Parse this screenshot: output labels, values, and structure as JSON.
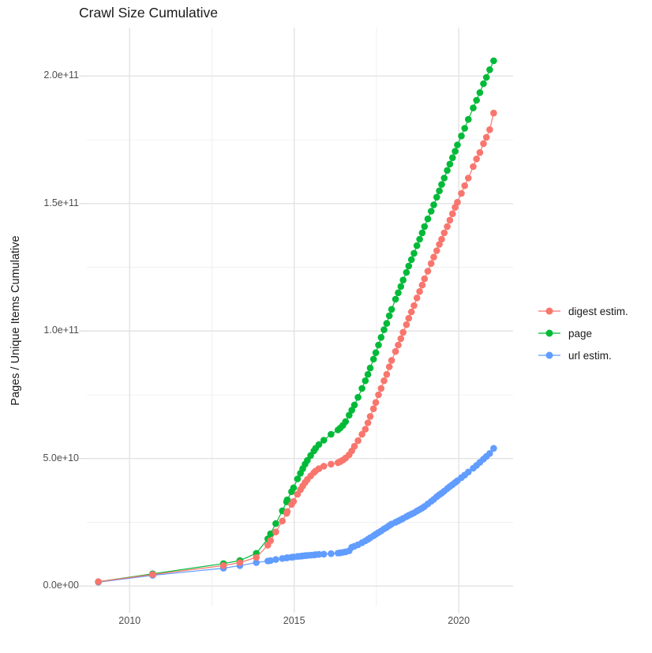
{
  "title": "Crawl Size Cumulative",
  "chart_data": {
    "type": "line",
    "title": "Crawl Size Cumulative",
    "xlabel": "",
    "ylabel": "Pages / Unique Items Cumulative",
    "legend_position": "right",
    "grid": true,
    "value_unit": "1e9 (billions of pages / unique items)",
    "xlim": [
      2008.7,
      2021.65
    ],
    "ylim_billions": [
      -8,
      219
    ],
    "x_ticks": [
      2010,
      2015,
      2020
    ],
    "x_tick_labels": [
      "2010",
      "2015",
      "2020"
    ],
    "x_minor_ticks": [
      2012.5,
      2017.5
    ],
    "y_ticks_billions": [
      0,
      50,
      100,
      150,
      200
    ],
    "y_tick_labels": [
      "0.0e+00",
      "5.0e+10",
      "1.0e+11",
      "1.5e+11",
      "2.0e+11"
    ],
    "y_minor_ticks_billions": [
      25,
      75,
      125,
      175
    ],
    "draw_order": [
      "url estim.",
      "page",
      "digest estim."
    ],
    "series": [
      {
        "name": "digest estim.",
        "color": "#F8766D",
        "points": [
          [
            2009.05,
            1.7
          ],
          [
            2010.7,
            4.5
          ],
          [
            2012.85,
            8.0
          ],
          [
            2013.35,
            9.2
          ],
          [
            2013.85,
            11.2
          ],
          [
            2014.2,
            16.0
          ],
          [
            2014.28,
            17.8
          ],
          [
            2014.44,
            21.2
          ],
          [
            2014.64,
            25.5
          ],
          [
            2014.77,
            28.5
          ],
          [
            2014.79,
            29.2
          ],
          [
            2014.92,
            32.0
          ],
          [
            2014.98,
            33.2
          ],
          [
            2015.1,
            36.0
          ],
          [
            2015.19,
            37.8
          ],
          [
            2015.26,
            39.2
          ],
          [
            2015.33,
            40.6
          ],
          [
            2015.4,
            41.8
          ],
          [
            2015.5,
            43.2
          ],
          [
            2015.6,
            44.5
          ],
          [
            2015.65,
            45.1
          ],
          [
            2015.75,
            46.0
          ],
          [
            2015.9,
            47.0
          ],
          [
            2016.12,
            47.8
          ],
          [
            2016.33,
            48.4
          ],
          [
            2016.4,
            48.8
          ],
          [
            2016.48,
            49.4
          ],
          [
            2016.56,
            50.2
          ],
          [
            2016.67,
            51.5
          ],
          [
            2016.75,
            53.0
          ],
          [
            2016.83,
            54.8
          ],
          [
            2016.94,
            57.0
          ],
          [
            2017.06,
            59.5
          ],
          [
            2017.16,
            61.5
          ],
          [
            2017.24,
            64.0
          ],
          [
            2017.31,
            66.5
          ],
          [
            2017.41,
            69.5
          ],
          [
            2017.48,
            72.0
          ],
          [
            2017.56,
            75.0
          ],
          [
            2017.64,
            77.5
          ],
          [
            2017.73,
            80.5
          ],
          [
            2017.81,
            83.0
          ],
          [
            2017.89,
            86.0
          ],
          [
            2017.96,
            88.5
          ],
          [
            2018.08,
            92.0
          ],
          [
            2018.16,
            94.5
          ],
          [
            2018.24,
            97.0
          ],
          [
            2018.31,
            99.5
          ],
          [
            2018.41,
            102.5
          ],
          [
            2018.48,
            105.0
          ],
          [
            2018.56,
            107.5
          ],
          [
            2018.64,
            110.0
          ],
          [
            2018.73,
            113.0
          ],
          [
            2018.81,
            115.5
          ],
          [
            2018.89,
            118.0
          ],
          [
            2018.96,
            120.5
          ],
          [
            2019.06,
            123.5
          ],
          [
            2019.16,
            126.5
          ],
          [
            2019.24,
            129.0
          ],
          [
            2019.33,
            131.5
          ],
          [
            2019.41,
            134.0
          ],
          [
            2019.48,
            136.0
          ],
          [
            2019.56,
            138.5
          ],
          [
            2019.65,
            141.0
          ],
          [
            2019.73,
            143.5
          ],
          [
            2019.81,
            146.0
          ],
          [
            2019.89,
            148.5
          ],
          [
            2019.96,
            150.5
          ],
          [
            2020.08,
            154.0
          ],
          [
            2020.18,
            157.0
          ],
          [
            2020.29,
            160.0
          ],
          [
            2020.44,
            164.5
          ],
          [
            2020.54,
            167.5
          ],
          [
            2020.64,
            170.0
          ],
          [
            2020.75,
            173.5
          ],
          [
            2020.84,
            176.0
          ],
          [
            2020.94,
            179.0
          ],
          [
            2021.06,
            185.5
          ]
        ]
      },
      {
        "name": "page",
        "color": "#00BA38",
        "points": [
          [
            2009.05,
            1.7
          ],
          [
            2010.7,
            4.8
          ],
          [
            2012.85,
            8.8
          ],
          [
            2013.35,
            10.0
          ],
          [
            2013.85,
            12.8
          ],
          [
            2014.2,
            18.5
          ],
          [
            2014.28,
            20.5
          ],
          [
            2014.44,
            24.5
          ],
          [
            2014.64,
            29.5
          ],
          [
            2014.77,
            33.0
          ],
          [
            2014.79,
            33.8
          ],
          [
            2014.92,
            37.0
          ],
          [
            2014.98,
            38.5
          ],
          [
            2015.1,
            42.0
          ],
          [
            2015.19,
            44.2
          ],
          [
            2015.26,
            46.0
          ],
          [
            2015.33,
            47.8
          ],
          [
            2015.4,
            49.3
          ],
          [
            2015.5,
            51.2
          ],
          [
            2015.6,
            53.0
          ],
          [
            2015.65,
            54.0
          ],
          [
            2015.75,
            55.5
          ],
          [
            2015.9,
            57.2
          ],
          [
            2016.12,
            59.5
          ],
          [
            2016.33,
            61.2
          ],
          [
            2016.4,
            62.0
          ],
          [
            2016.48,
            63.0
          ],
          [
            2016.56,
            64.5
          ],
          [
            2016.67,
            67.0
          ],
          [
            2016.75,
            69.0
          ],
          [
            2016.83,
            71.0
          ],
          [
            2016.94,
            74.0
          ],
          [
            2017.06,
            77.5
          ],
          [
            2017.16,
            80.5
          ],
          [
            2017.24,
            83.0
          ],
          [
            2017.31,
            85.5
          ],
          [
            2017.41,
            89.0
          ],
          [
            2017.48,
            91.5
          ],
          [
            2017.56,
            94.5
          ],
          [
            2017.64,
            97.5
          ],
          [
            2017.73,
            100.5
          ],
          [
            2017.81,
            103.0
          ],
          [
            2017.89,
            106.0
          ],
          [
            2017.96,
            108.5
          ],
          [
            2018.08,
            112.5
          ],
          [
            2018.16,
            115.0
          ],
          [
            2018.24,
            117.5
          ],
          [
            2018.31,
            120.0
          ],
          [
            2018.41,
            123.0
          ],
          [
            2018.48,
            125.5
          ],
          [
            2018.56,
            128.0
          ],
          [
            2018.64,
            130.5
          ],
          [
            2018.73,
            133.5
          ],
          [
            2018.81,
            136.0
          ],
          [
            2018.89,
            138.5
          ],
          [
            2018.96,
            141.0
          ],
          [
            2019.06,
            144.0
          ],
          [
            2019.16,
            147.0
          ],
          [
            2019.24,
            149.5
          ],
          [
            2019.33,
            152.5
          ],
          [
            2019.41,
            155.0
          ],
          [
            2019.48,
            157.5
          ],
          [
            2019.56,
            160.0
          ],
          [
            2019.65,
            163.0
          ],
          [
            2019.73,
            165.5
          ],
          [
            2019.81,
            168.0
          ],
          [
            2019.89,
            170.5
          ],
          [
            2019.96,
            173.0
          ],
          [
            2020.08,
            176.5
          ],
          [
            2020.18,
            179.5
          ],
          [
            2020.29,
            183.0
          ],
          [
            2020.44,
            187.5
          ],
          [
            2020.54,
            190.5
          ],
          [
            2020.64,
            193.5
          ],
          [
            2020.75,
            197.0
          ],
          [
            2020.84,
            199.5
          ],
          [
            2020.94,
            202.5
          ],
          [
            2021.06,
            206.0
          ]
        ]
      },
      {
        "name": "url estim.",
        "color": "#619CFF",
        "points": [
          [
            2009.05,
            1.5
          ],
          [
            2010.7,
            4.2
          ],
          [
            2012.85,
            7.0
          ],
          [
            2013.35,
            8.0
          ],
          [
            2013.85,
            9.2
          ],
          [
            2014.2,
            9.8
          ],
          [
            2014.28,
            10.0
          ],
          [
            2014.44,
            10.4
          ],
          [
            2014.64,
            10.8
          ],
          [
            2014.77,
            11.0
          ],
          [
            2014.79,
            11.1
          ],
          [
            2014.92,
            11.3
          ],
          [
            2014.98,
            11.4
          ],
          [
            2015.1,
            11.6
          ],
          [
            2015.19,
            11.7
          ],
          [
            2015.26,
            11.8
          ],
          [
            2015.33,
            11.9
          ],
          [
            2015.4,
            12.0
          ],
          [
            2015.5,
            12.1
          ],
          [
            2015.6,
            12.2
          ],
          [
            2015.65,
            12.3
          ],
          [
            2015.75,
            12.4
          ],
          [
            2015.9,
            12.5
          ],
          [
            2016.12,
            12.7
          ],
          [
            2016.33,
            12.9
          ],
          [
            2016.4,
            13.0
          ],
          [
            2016.48,
            13.2
          ],
          [
            2016.56,
            13.4
          ],
          [
            2016.67,
            13.8
          ],
          [
            2016.75,
            15.2
          ],
          [
            2016.83,
            15.6
          ],
          [
            2016.94,
            16.2
          ],
          [
            2017.06,
            17.0
          ],
          [
            2017.16,
            17.7
          ],
          [
            2017.24,
            18.3
          ],
          [
            2017.31,
            18.9
          ],
          [
            2017.41,
            19.7
          ],
          [
            2017.48,
            20.3
          ],
          [
            2017.56,
            21.0
          ],
          [
            2017.64,
            21.6
          ],
          [
            2017.73,
            22.4
          ],
          [
            2017.81,
            23.0
          ],
          [
            2017.89,
            23.7
          ],
          [
            2017.96,
            24.3
          ],
          [
            2018.08,
            25.0
          ],
          [
            2018.16,
            25.5
          ],
          [
            2018.24,
            26.0
          ],
          [
            2018.31,
            26.5
          ],
          [
            2018.41,
            27.2
          ],
          [
            2018.48,
            27.7
          ],
          [
            2018.56,
            28.2
          ],
          [
            2018.64,
            28.7
          ],
          [
            2018.73,
            29.4
          ],
          [
            2018.81,
            30.0
          ],
          [
            2018.89,
            30.6
          ],
          [
            2018.96,
            31.2
          ],
          [
            2019.06,
            32.2
          ],
          [
            2019.16,
            33.2
          ],
          [
            2019.24,
            34.0
          ],
          [
            2019.33,
            35.0
          ],
          [
            2019.41,
            35.8
          ],
          [
            2019.48,
            36.4
          ],
          [
            2019.56,
            37.2
          ],
          [
            2019.65,
            38.2
          ],
          [
            2019.73,
            39.0
          ],
          [
            2019.81,
            39.8
          ],
          [
            2019.89,
            40.6
          ],
          [
            2019.96,
            41.3
          ],
          [
            2020.08,
            42.5
          ],
          [
            2020.18,
            43.5
          ],
          [
            2020.29,
            44.7
          ],
          [
            2020.44,
            46.2
          ],
          [
            2020.54,
            47.3
          ],
          [
            2020.64,
            48.5
          ],
          [
            2020.75,
            49.8
          ],
          [
            2020.84,
            50.8
          ],
          [
            2020.94,
            52.0
          ],
          [
            2021.06,
            54.0
          ]
        ]
      }
    ],
    "style_colors": {
      "grid_major": "#e3e3e3",
      "grid_minor": "#f0f0f0",
      "tick_mark": "#e0e0e0",
      "tick_label": "#4d4d4d",
      "text": "#1a1a1a",
      "background": "#ffffff"
    }
  }
}
